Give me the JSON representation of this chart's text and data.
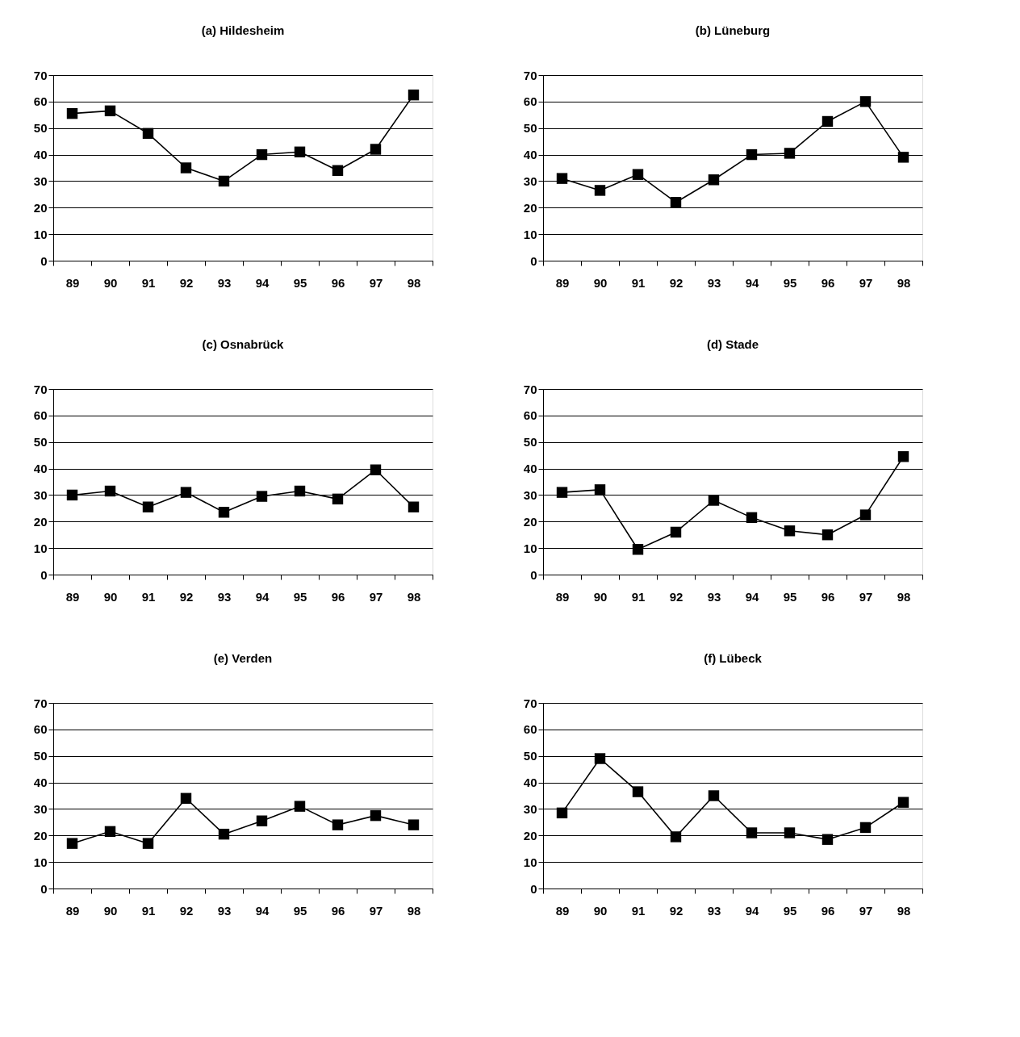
{
  "chart_data": [
    {
      "type": "line",
      "title": "(a) Hildesheim",
      "categories": [
        "89",
        "90",
        "91",
        "92",
        "93",
        "94",
        "95",
        "96",
        "97",
        "98"
      ],
      "series": [
        {
          "color": "#000000",
          "values": [
            55.5,
            56.5,
            48,
            35,
            30,
            40,
            41,
            34,
            42,
            62.5
          ]
        }
      ],
      "ylim": [
        0,
        70
      ],
      "yticks": [
        0,
        10,
        20,
        30,
        40,
        50,
        60,
        70
      ],
      "grid": "y",
      "marker": "square",
      "line_style": "solid"
    },
    {
      "type": "line",
      "title": "(b) Lüneburg",
      "categories": [
        "89",
        "90",
        "91",
        "92",
        "93",
        "94",
        "95",
        "96",
        "97",
        "98"
      ],
      "series": [
        {
          "color": "#000000",
          "values": [
            31,
            26.5,
            32.5,
            22,
            30.5,
            40,
            40.5,
            52.5,
            60,
            39
          ]
        }
      ],
      "ylim": [
        0,
        70
      ],
      "yticks": [
        0,
        10,
        20,
        30,
        40,
        50,
        60,
        70
      ],
      "grid": "y",
      "marker": "square",
      "line_style": "solid"
    },
    {
      "type": "line",
      "title": "(c) Osnabrück",
      "categories": [
        "89",
        "90",
        "91",
        "92",
        "93",
        "94",
        "95",
        "96",
        "97",
        "98"
      ],
      "series": [
        {
          "color": "#000000",
          "values": [
            30,
            31.5,
            25.5,
            31,
            23.5,
            29.5,
            31.5,
            28.5,
            39.5,
            25.5
          ]
        }
      ],
      "ylim": [
        0,
        70
      ],
      "yticks": [
        0,
        10,
        20,
        30,
        40,
        50,
        60,
        70
      ],
      "grid": "y",
      "marker": "square",
      "line_style": "solid"
    },
    {
      "type": "line",
      "title": "(d) Stade",
      "categories": [
        "89",
        "90",
        "91",
        "92",
        "93",
        "94",
        "95",
        "96",
        "97",
        "98"
      ],
      "series": [
        {
          "color": "#000000",
          "values": [
            31,
            32,
            9.5,
            16,
            28,
            21.5,
            16.5,
            15,
            22.5,
            44.5
          ]
        }
      ],
      "ylim": [
        0,
        70
      ],
      "yticks": [
        0,
        10,
        20,
        30,
        40,
        50,
        60,
        70
      ],
      "grid": "y",
      "marker": "square",
      "line_style": "solid"
    },
    {
      "type": "line",
      "title": "(e) Verden",
      "categories": [
        "89",
        "90",
        "91",
        "92",
        "93",
        "94",
        "95",
        "96",
        "97",
        "98"
      ],
      "series": [
        {
          "color": "#000000",
          "values": [
            17,
            21.5,
            17,
            34,
            20.5,
            25.5,
            31,
            24,
            27.5,
            24
          ]
        }
      ],
      "ylim": [
        0,
        70
      ],
      "yticks": [
        0,
        10,
        20,
        30,
        40,
        50,
        60,
        70
      ],
      "grid": "y",
      "marker": "square",
      "line_style": "solid"
    },
    {
      "type": "line",
      "title": "(f) Lübeck",
      "categories": [
        "89",
        "90",
        "91",
        "92",
        "93",
        "94",
        "95",
        "96",
        "97",
        "98"
      ],
      "series": [
        {
          "color": "#000000",
          "values": [
            28.5,
            49,
            36.5,
            19.5,
            35,
            21,
            21,
            18.5,
            23,
            32.5
          ]
        }
      ],
      "ylim": [
        0,
        70
      ],
      "yticks": [
        0,
        10,
        20,
        30,
        40,
        50,
        60,
        70
      ],
      "grid": "y",
      "marker": "square",
      "line_style": "solid"
    }
  ]
}
